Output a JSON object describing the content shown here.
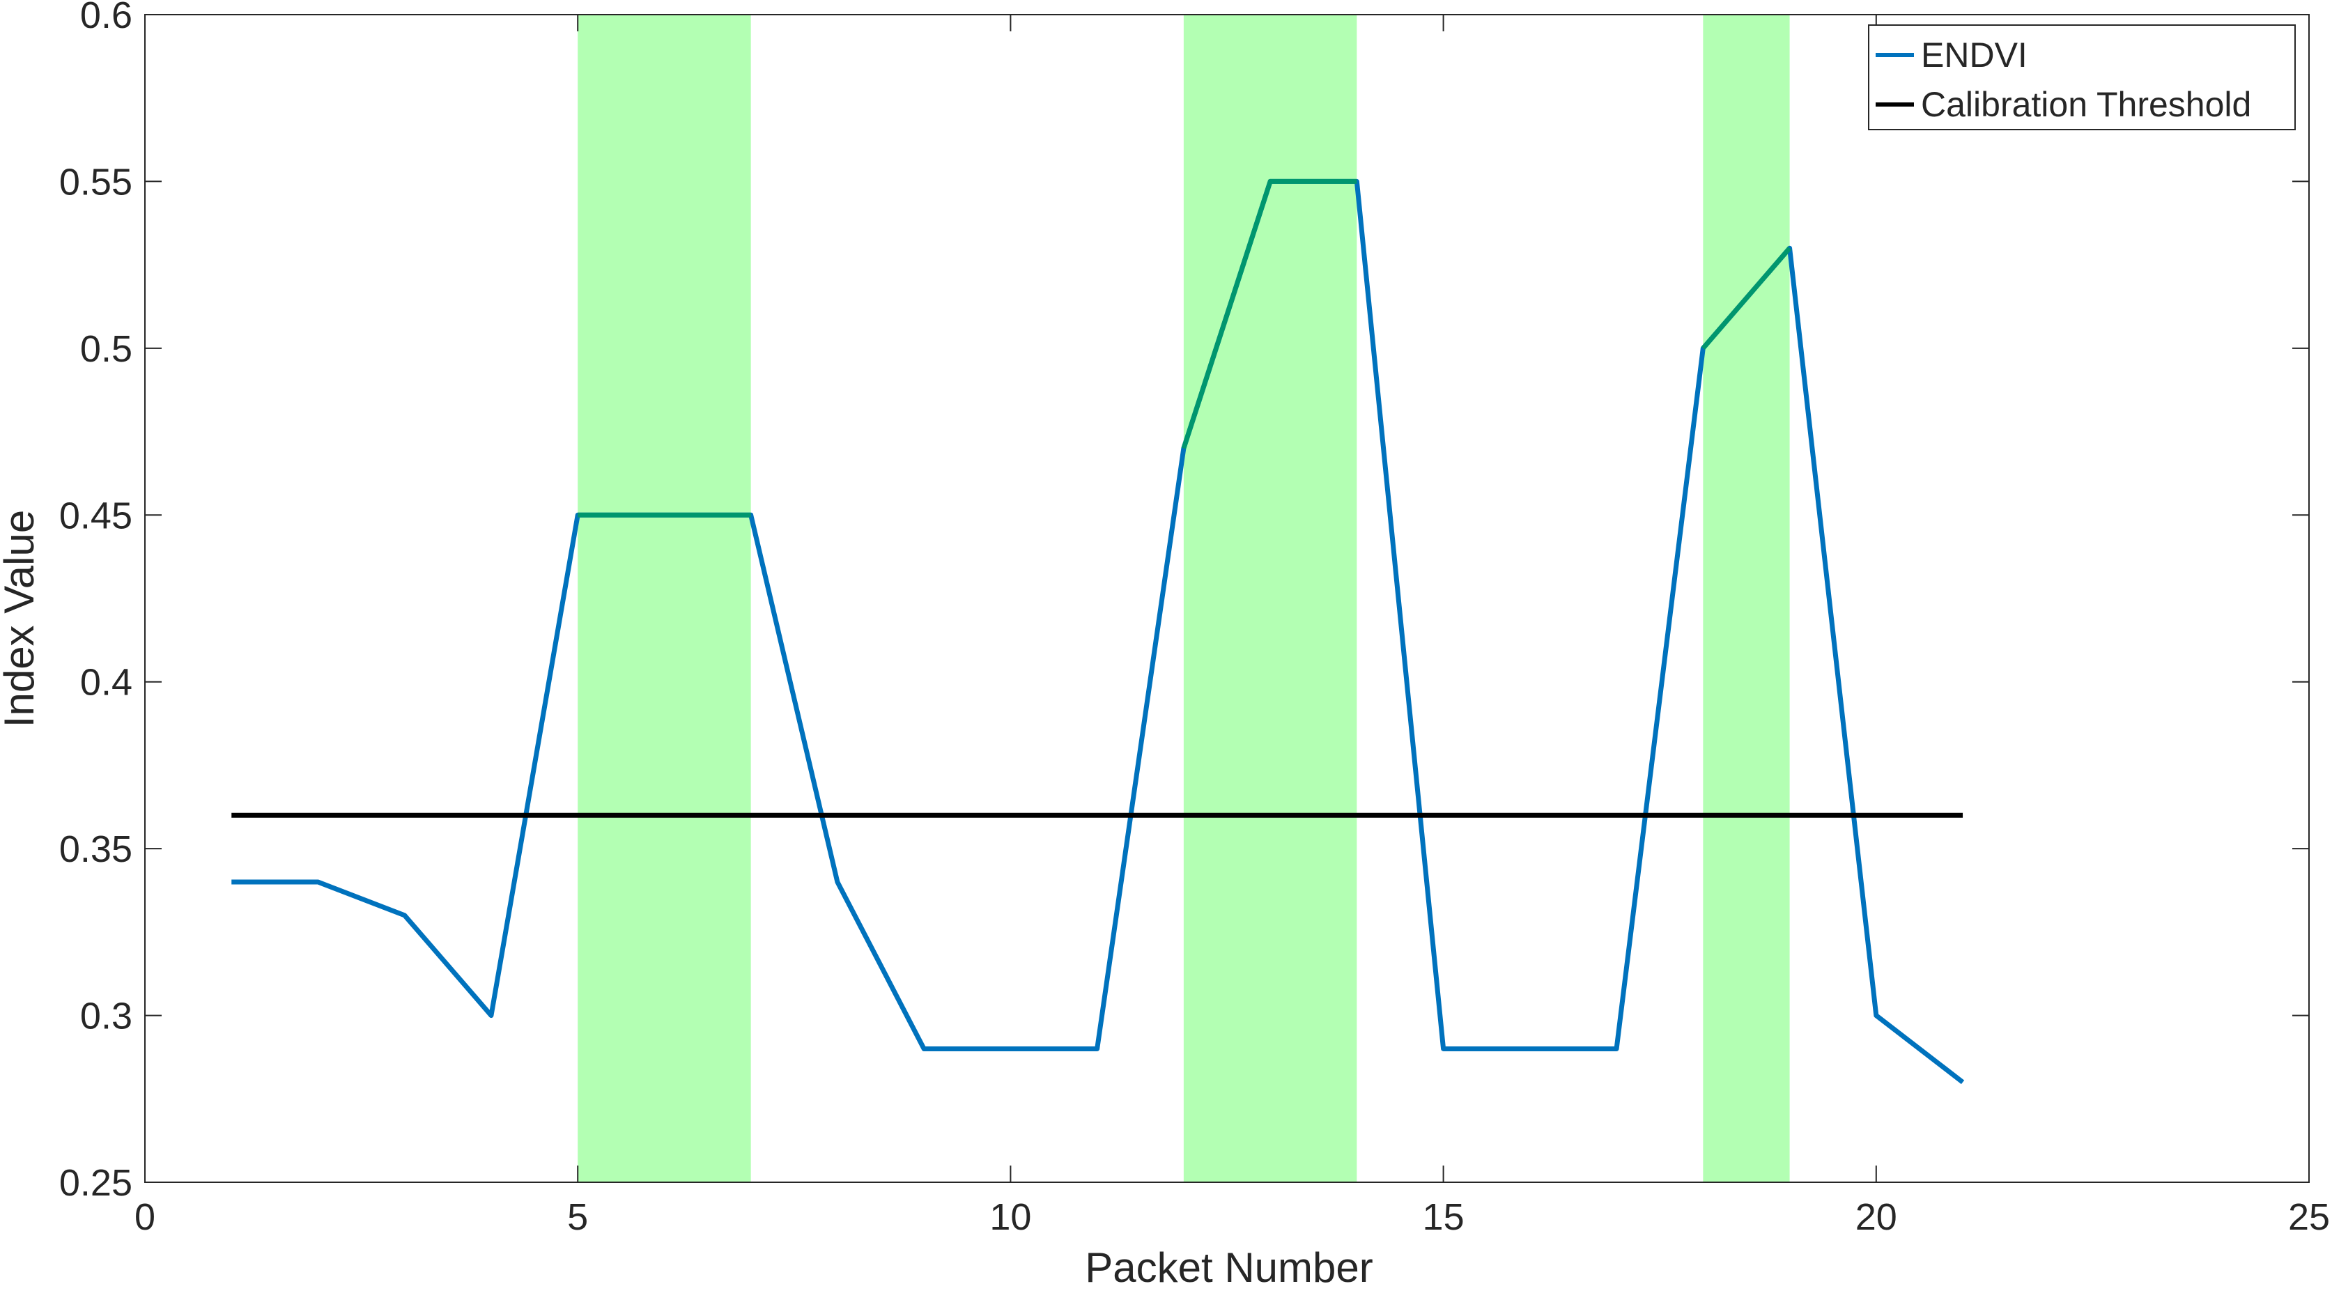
{
  "chart_data": {
    "type": "line",
    "title": "",
    "xlabel": "Packet Number",
    "ylabel": "Index Value",
    "xlim": [
      0,
      25
    ],
    "ylim": [
      0.25,
      0.6
    ],
    "xticks": [
      0,
      5,
      10,
      15,
      20,
      25
    ],
    "yticks": [
      0.25,
      0.3,
      0.35,
      0.4,
      0.45,
      0.5,
      0.55,
      0.6
    ],
    "xtick_labels": [
      "0",
      "5",
      "10",
      "15",
      "20",
      "25"
    ],
    "ytick_labels": [
      "0.25",
      "0.3",
      "0.35",
      "0.4",
      "0.45",
      "0.5",
      "0.55",
      "0.6"
    ],
    "grid": false,
    "legend_position": "top-right",
    "series": [
      {
        "name": "ENDVI",
        "color": "#0072BD",
        "x": [
          1,
          2,
          3,
          4,
          5,
          6,
          7,
          8,
          9,
          10,
          11,
          12,
          13,
          14,
          15,
          16,
          17,
          18,
          19,
          20,
          21
        ],
        "y": [
          0.34,
          0.34,
          0.33,
          0.3,
          0.45,
          0.45,
          0.45,
          0.34,
          0.29,
          0.29,
          0.29,
          0.47,
          0.55,
          0.55,
          0.29,
          0.29,
          0.29,
          0.5,
          0.53,
          0.3,
          0.28
        ]
      },
      {
        "name": "Calibration Threshold",
        "color": "#000000",
        "x": [
          1,
          21
        ],
        "y": [
          0.36,
          0.36
        ]
      }
    ],
    "highlight_regions": [
      {
        "x": [
          5,
          7
        ],
        "color": "#B3FFB3"
      },
      {
        "x": [
          12,
          14
        ],
        "color": "#B3FFB3"
      },
      {
        "x": [
          18,
          19
        ],
        "color": "#B3FFB3"
      }
    ],
    "highlight_line_color": "#00966E"
  }
}
